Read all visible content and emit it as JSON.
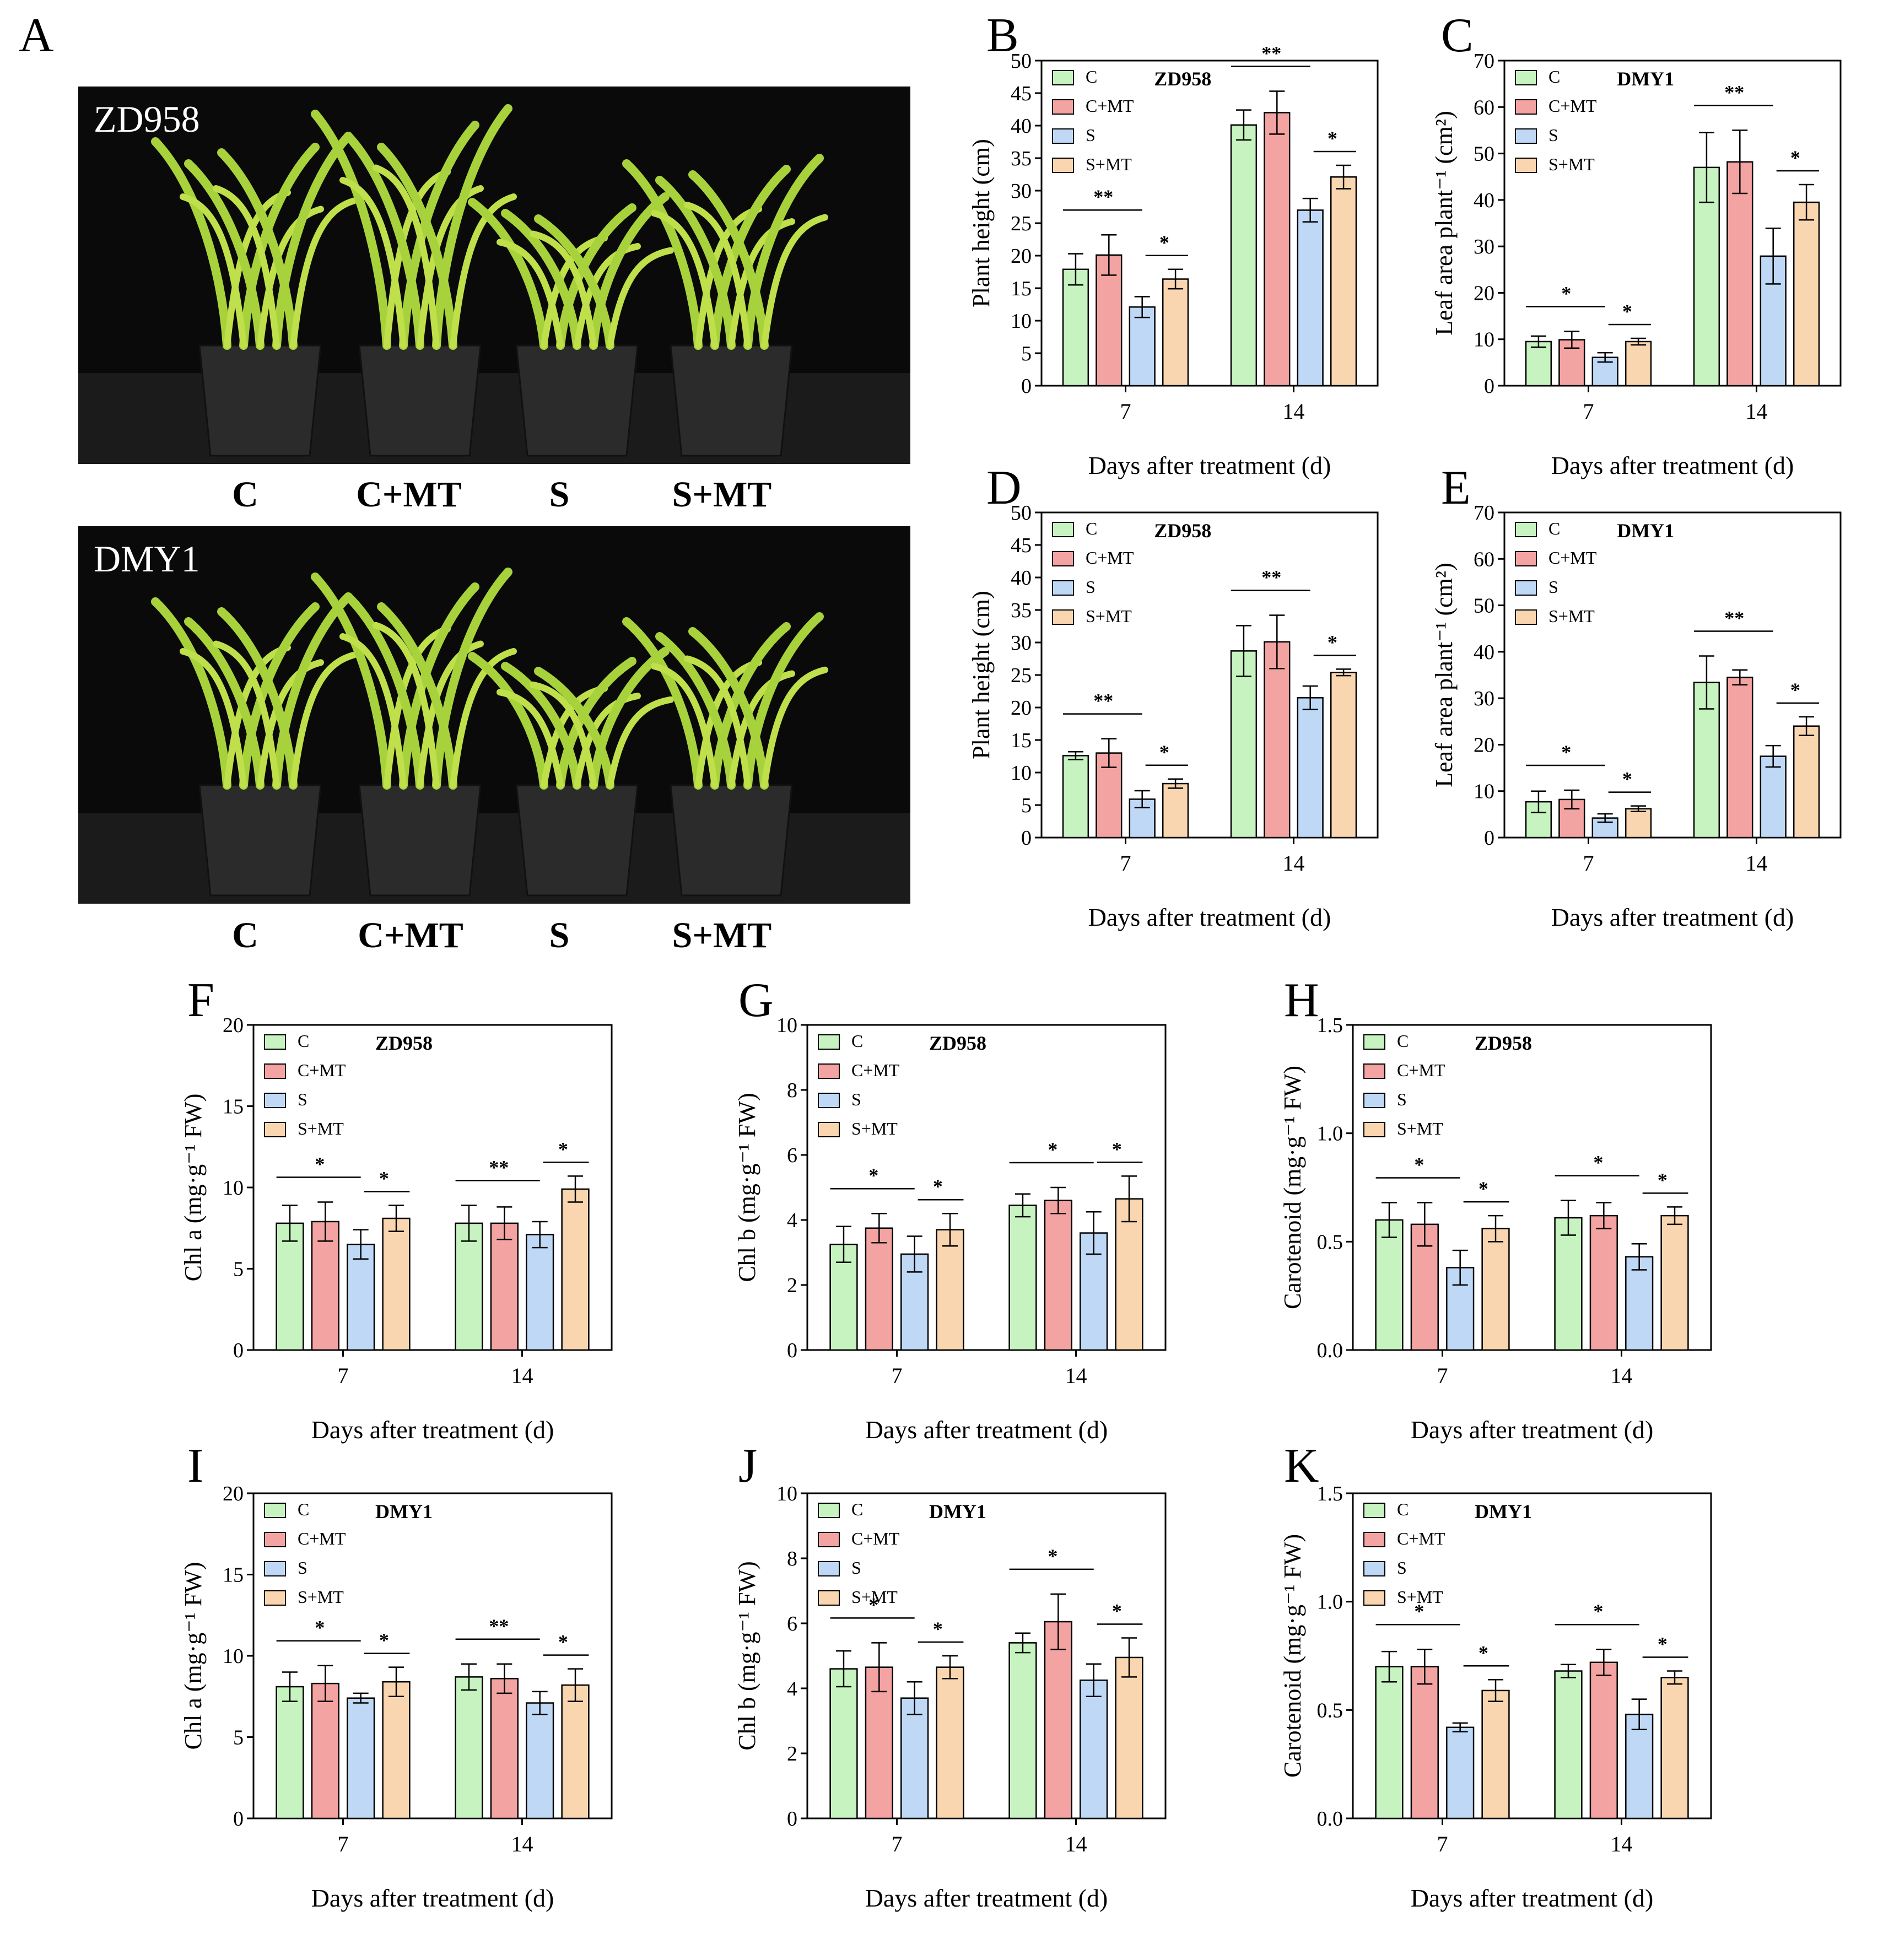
{
  "figure": {
    "panel_A": {
      "letter": "A",
      "photos": [
        {
          "cultivar": "ZD958",
          "treatments": [
            "C",
            "C+MT",
            "S",
            "S+MT"
          ]
        },
        {
          "cultivar": "DMY1",
          "treatments": [
            "C",
            "C+MT",
            "S",
            "S+MT"
          ]
        }
      ]
    }
  },
  "colors": {
    "C": "#c6f3c0",
    "C+MT": "#f4a3a3",
    "S": "#bfd8f5",
    "S+MT": "#fad6b0",
    "plant": "#a8d23c",
    "pot": "#2b2b2b"
  },
  "chart_data": [
    {
      "id": "B",
      "type": "bar",
      "title": "ZD958",
      "categories": [
        "7",
        "14"
      ],
      "xlabel": "Days after treatment (d)",
      "ylabel": "Plant height (cm)",
      "ylim": [
        0,
        50
      ],
      "yticks": [
        "0",
        "5",
        "10",
        "15",
        "20",
        "25",
        "30",
        "35",
        "40",
        "45",
        "50"
      ],
      "legend": [
        "C",
        "C+MT",
        "S",
        "S+MT"
      ],
      "series": [
        {
          "name": "C",
          "values": [
            17.9,
            40.1
          ],
          "errors": [
            2.4,
            2.3
          ]
        },
        {
          "name": "C+MT",
          "values": [
            20.1,
            42.0
          ],
          "errors": [
            3.1,
            3.3
          ]
        },
        {
          "name": "S",
          "values": [
            12.1,
            27.0
          ],
          "errors": [
            1.6,
            1.8
          ]
        },
        {
          "name": "S+MT",
          "values": [
            16.4,
            32.1
          ],
          "errors": [
            1.5,
            1.8
          ]
        }
      ],
      "sig": [
        [
          "**",
          "*"
        ],
        [
          "**",
          "*"
        ]
      ]
    },
    {
      "id": "C",
      "type": "bar",
      "title": "DMY1",
      "categories": [
        "7",
        "14"
      ],
      "xlabel": "Days after treatment (d)",
      "ylabel": "Leaf area plant⁻¹ (cm²)",
      "ylim": [
        0,
        70
      ],
      "yticks": [
        "0",
        "10",
        "20",
        "30",
        "40",
        "50",
        "60",
        "70"
      ],
      "legend": [
        "C",
        "C+MT",
        "S",
        "S+MT"
      ],
      "series": [
        {
          "name": "C",
          "values": [
            9.5,
            47.0
          ],
          "errors": [
            1.2,
            7.5
          ]
        },
        {
          "name": "C+MT",
          "values": [
            9.9,
            48.2
          ],
          "errors": [
            1.8,
            6.8
          ]
        },
        {
          "name": "S",
          "values": [
            6.1,
            27.9
          ],
          "errors": [
            1.0,
            6.0
          ]
        },
        {
          "name": "S+MT",
          "values": [
            9.5,
            39.5
          ],
          "errors": [
            0.7,
            3.8
          ]
        }
      ],
      "sig": [
        [
          "*",
          "*"
        ],
        [
          "**",
          "*"
        ]
      ]
    },
    {
      "id": "D",
      "type": "bar",
      "title": "ZD958",
      "categories": [
        "7",
        "14"
      ],
      "xlabel": "Days after treatment (d)",
      "ylabel": "Plant height (cm)",
      "ylim": [
        0,
        50
      ],
      "yticks": [
        "0",
        "5",
        "10",
        "15",
        "20",
        "25",
        "30",
        "35",
        "40",
        "45",
        "50"
      ],
      "legend": [
        "C",
        "C+MT",
        "S",
        "S+MT"
      ],
      "series": [
        {
          "name": "C",
          "values": [
            12.6,
            28.7
          ],
          "errors": [
            0.6,
            3.9
          ]
        },
        {
          "name": "C+MT",
          "values": [
            13.0,
            30.1
          ],
          "errors": [
            2.2,
            4.1
          ]
        },
        {
          "name": "S",
          "values": [
            5.9,
            21.5
          ],
          "errors": [
            1.3,
            1.8
          ]
        },
        {
          "name": "S+MT",
          "values": [
            8.3,
            25.4
          ],
          "errors": [
            0.7,
            0.5
          ]
        }
      ],
      "sig": [
        [
          "**",
          "*"
        ],
        [
          "**",
          "*"
        ]
      ]
    },
    {
      "id": "E",
      "type": "bar",
      "title": "DMY1",
      "categories": [
        "7",
        "14"
      ],
      "xlabel": "Days after treatment (d)",
      "ylabel": "Leaf area plant⁻¹ (cm²)",
      "ylim": [
        0,
        70
      ],
      "yticks": [
        "0",
        "10",
        "20",
        "30",
        "40",
        "50",
        "60",
        "70"
      ],
      "legend": [
        "C",
        "C+MT",
        "S",
        "S+MT"
      ],
      "series": [
        {
          "name": "C",
          "values": [
            7.7,
            33.4
          ],
          "errors": [
            2.3,
            5.7
          ]
        },
        {
          "name": "C+MT",
          "values": [
            8.2,
            34.5
          ],
          "errors": [
            2.0,
            1.6
          ]
        },
        {
          "name": "S",
          "values": [
            4.2,
            17.5
          ],
          "errors": [
            0.9,
            2.3
          ]
        },
        {
          "name": "S+MT",
          "values": [
            6.2,
            24.0
          ],
          "errors": [
            0.6,
            2.0
          ]
        }
      ],
      "sig": [
        [
          "*",
          "*"
        ],
        [
          "**",
          "*"
        ]
      ]
    },
    {
      "id": "F",
      "type": "bar",
      "title": "ZD958",
      "categories": [
        "7",
        "14"
      ],
      "xlabel": "Days after treatment (d)",
      "ylabel": "Chl a (mg·g⁻¹ FW)",
      "ylim": [
        0,
        20
      ],
      "yticks": [
        "0",
        "5",
        "10",
        "15",
        "20"
      ],
      "legend": [
        "C",
        "C+MT",
        "S",
        "S+MT"
      ],
      "series": [
        {
          "name": "C",
          "values": [
            7.8,
            7.8
          ],
          "errors": [
            1.1,
            1.1
          ]
        },
        {
          "name": "C+MT",
          "values": [
            7.9,
            7.8
          ],
          "errors": [
            1.2,
            1.0
          ]
        },
        {
          "name": "S",
          "values": [
            6.5,
            7.1
          ],
          "errors": [
            0.9,
            0.8
          ]
        },
        {
          "name": "S+MT",
          "values": [
            8.1,
            9.9
          ],
          "errors": [
            0.8,
            0.8
          ]
        }
      ],
      "sig": [
        [
          "*",
          "*"
        ],
        [
          "**",
          "*"
        ]
      ]
    },
    {
      "id": "G",
      "type": "bar",
      "title": "ZD958",
      "categories": [
        "7",
        "14"
      ],
      "xlabel": "Days after treatment (d)",
      "ylabel": "Chl b (mg·g⁻¹ FW)",
      "ylim": [
        0,
        10
      ],
      "yticks": [
        "0",
        "2",
        "4",
        "6",
        "8",
        "10"
      ],
      "legend": [
        "C",
        "C+MT",
        "S",
        "S+MT"
      ],
      "series": [
        {
          "name": "C",
          "values": [
            3.25,
            4.45
          ],
          "errors": [
            0.55,
            0.35
          ]
        },
        {
          "name": "C+MT",
          "values": [
            3.75,
            4.6
          ],
          "errors": [
            0.45,
            0.4
          ]
        },
        {
          "name": "S",
          "values": [
            2.95,
            3.6
          ],
          "errors": [
            0.55,
            0.65
          ]
        },
        {
          "name": "S+MT",
          "values": [
            3.7,
            4.65
          ],
          "errors": [
            0.5,
            0.7
          ]
        }
      ],
      "sig": [
        [
          "*",
          "*"
        ],
        [
          "*",
          "*"
        ]
      ]
    },
    {
      "id": "H",
      "type": "bar",
      "title": "ZD958",
      "categories": [
        "7",
        "14"
      ],
      "xlabel": "Days after treatment (d)",
      "ylabel": "Carotenoid (mg·g⁻¹ FW)",
      "ylim": [
        0,
        1.5
      ],
      "yticks": [
        "0.0",
        "0.5",
        "1.0",
        "1.5"
      ],
      "legend": [
        "C",
        "C+MT",
        "S",
        "S+MT"
      ],
      "series": [
        {
          "name": "C",
          "values": [
            0.6,
            0.61
          ],
          "errors": [
            0.08,
            0.08
          ]
        },
        {
          "name": "C+MT",
          "values": [
            0.58,
            0.62
          ],
          "errors": [
            0.1,
            0.06
          ]
        },
        {
          "name": "S",
          "values": [
            0.38,
            0.43
          ],
          "errors": [
            0.08,
            0.06
          ]
        },
        {
          "name": "S+MT",
          "values": [
            0.56,
            0.62
          ],
          "errors": [
            0.06,
            0.04
          ]
        }
      ],
      "sig": [
        [
          "*",
          "*"
        ],
        [
          "*",
          "*"
        ]
      ]
    },
    {
      "id": "I",
      "type": "bar",
      "title": "DMY1",
      "categories": [
        "7",
        "14"
      ],
      "xlabel": "Days after treatment (d)",
      "ylabel": "Chl a (mg·g⁻¹ FW)",
      "ylim": [
        0,
        20
      ],
      "yticks": [
        "0",
        "5",
        "10",
        "15",
        "20"
      ],
      "legend": [
        "C",
        "C+MT",
        "S",
        "S+MT"
      ],
      "series": [
        {
          "name": "C",
          "values": [
            8.1,
            8.7
          ],
          "errors": [
            0.9,
            0.8
          ]
        },
        {
          "name": "C+MT",
          "values": [
            8.3,
            8.6
          ],
          "errors": [
            1.1,
            0.9
          ]
        },
        {
          "name": "S",
          "values": [
            7.4,
            7.1
          ],
          "errors": [
            0.3,
            0.7
          ]
        },
        {
          "name": "S+MT",
          "values": [
            8.4,
            8.2
          ],
          "errors": [
            0.9,
            1.0
          ]
        }
      ],
      "sig": [
        [
          "*",
          "*"
        ],
        [
          "**",
          "*"
        ]
      ]
    },
    {
      "id": "J",
      "type": "bar",
      "title": "DMY1",
      "categories": [
        "7",
        "14"
      ],
      "xlabel": "Days after treatment (d)",
      "ylabel": "Chl b (mg·g⁻¹ FW)",
      "ylim": [
        0,
        10
      ],
      "yticks": [
        "0",
        "2",
        "4",
        "6",
        "8",
        "10"
      ],
      "legend": [
        "C",
        "C+MT",
        "S",
        "S+MT"
      ],
      "series": [
        {
          "name": "C",
          "values": [
            4.6,
            5.4
          ],
          "errors": [
            0.55,
            0.3
          ]
        },
        {
          "name": "C+MT",
          "values": [
            4.65,
            6.05
          ],
          "errors": [
            0.75,
            0.85
          ]
        },
        {
          "name": "S",
          "values": [
            3.7,
            4.25
          ],
          "errors": [
            0.5,
            0.5
          ]
        },
        {
          "name": "S+MT",
          "values": [
            4.65,
            4.95
          ],
          "errors": [
            0.35,
            0.6
          ]
        }
      ],
      "sig": [
        [
          "*",
          "*"
        ],
        [
          "*",
          "*"
        ]
      ]
    },
    {
      "id": "K",
      "type": "bar",
      "title": "DMY1",
      "categories": [
        "7",
        "14"
      ],
      "xlabel": "Days after treatment (d)",
      "ylabel": "Carotenoid (mg·g⁻¹ FW)",
      "ylim": [
        0,
        1.5
      ],
      "yticks": [
        "0.0",
        "0.5",
        "1.0",
        "1.5"
      ],
      "legend": [
        "C",
        "C+MT",
        "S",
        "S+MT"
      ],
      "series": [
        {
          "name": "C",
          "values": [
            0.7,
            0.68
          ],
          "errors": [
            0.07,
            0.03
          ]
        },
        {
          "name": "C+MT",
          "values": [
            0.7,
            0.72
          ],
          "errors": [
            0.08,
            0.06
          ]
        },
        {
          "name": "S",
          "values": [
            0.42,
            0.48
          ],
          "errors": [
            0.02,
            0.07
          ]
        },
        {
          "name": "S+MT",
          "values": [
            0.59,
            0.65
          ],
          "errors": [
            0.05,
            0.03
          ]
        }
      ],
      "sig": [
        [
          "*",
          "*"
        ],
        [
          "*",
          "*"
        ]
      ]
    }
  ]
}
